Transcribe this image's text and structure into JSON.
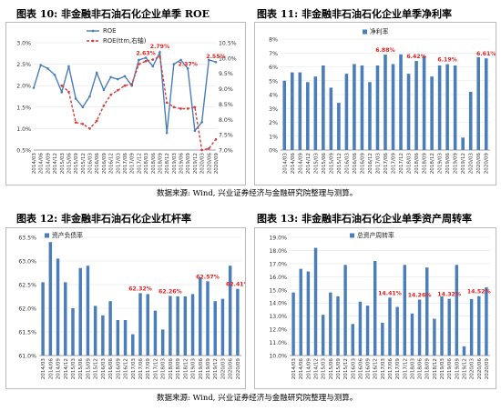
{
  "sections": [
    {
      "title": "图表  10:  非金融非石油石化企业单季 ROE"
    },
    {
      "title": "图表  11:  非金融非石油石化企业单季净利率"
    },
    {
      "title": "图表  12:  非金融非石油石化企业杠杆率"
    },
    {
      "title": "图表  13:  非金融非石油石化企业单季资产周转率"
    }
  ],
  "source_top": "数据来源:  Wind,  兴业证券经济与金融研究院整理与测算。",
  "source_bottom": "数据来源:  Wind,  兴业证券经济与金融研究院整理与测算。",
  "chart_data": [
    {
      "type": "line",
      "title": "",
      "x": [
        "2014/03",
        "2014/06",
        "2014/09",
        "2014/12",
        "2015/03",
        "2015/06",
        "2015/09",
        "2015/12",
        "2016/03",
        "2016/06",
        "2016/09",
        "2016/12",
        "2017/03",
        "2017/06",
        "2017/09",
        "2017/12",
        "2018/03",
        "2018/06",
        "2018/09",
        "2018/12",
        "2019/03",
        "2019/06",
        "2019/09",
        "2019/12",
        "2020/03",
        "2020/06",
        "2020/09"
      ],
      "xticks": [
        "2014/03",
        "2014/06",
        "2014/09",
        "2014/12",
        "2015/03",
        "2015/06",
        "2015/09",
        "2015/12",
        "2016/03",
        "2016/06",
        "2016/09",
        "2016/12",
        "2017/03",
        "2017/06",
        "2017/09",
        "2017/12",
        "2018/03",
        "2018/06",
        "2018/09",
        "2018/12",
        "2019/03",
        "2019/06",
        "2019/09",
        "2019/12",
        "2020/03",
        "2020/06",
        "2020/09"
      ],
      "ylim_left": [
        0.5,
        3.0
      ],
      "yticks_left": [
        "0.5%",
        "1.0%",
        "1.5%",
        "2.0%",
        "2.5%",
        "3.0%"
      ],
      "ylim_right": [
        7.0,
        10.5
      ],
      "yticks_right": [
        "7.0%",
        "7.5%",
        "8.0%",
        "8.5%",
        "9.0%",
        "9.5%",
        "10.0%",
        "10.5%"
      ],
      "series": [
        {
          "name": "ROE",
          "axis": "left",
          "color": "#4a7ebb",
          "style": "solid",
          "values": [
            1.95,
            2.48,
            2.4,
            2.25,
            1.85,
            2.45,
            1.7,
            1.5,
            1.75,
            2.3,
            1.9,
            2.2,
            2.15,
            2.22,
            2.0,
            2.6,
            2.65,
            2.45,
            2.78,
            0.9,
            2.5,
            2.6,
            2.4,
            0.95,
            1.15,
            2.6,
            2.55
          ]
        },
        {
          "name": "ROE(ttm,右轴)",
          "axis": "right",
          "color": "#d43c3c",
          "style": "dashed",
          "values": [
            null,
            null,
            null,
            null,
            9.1,
            8.9,
            7.9,
            7.85,
            7.7,
            7.95,
            8.45,
            8.8,
            8.95,
            9.1,
            9.15,
            9.8,
            9.9,
            9.95,
            10.05,
            8.55,
            8.4,
            8.35,
            8.35,
            8.4,
            7.0,
            7.05,
            7.35
          ]
        }
      ],
      "annotations": [
        {
          "text": "2.63%",
          "index": 16,
          "value": 2.63
        },
        {
          "text": "2.79%",
          "index": 18,
          "value": 2.79
        },
        {
          "text": "2.37%",
          "index": 22,
          "value": 2.37
        },
        {
          "text": "2.55%",
          "index": 26,
          "value": 2.55
        }
      ]
    },
    {
      "type": "bar",
      "title": "",
      "categories": [
        "2014/03",
        "2014/06",
        "2014/09",
        "2014/12",
        "2015/03",
        "2015/06",
        "2015/09",
        "2015/12",
        "2016/03",
        "2016/06",
        "2016/09",
        "2016/12",
        "2017/03",
        "2017/06",
        "2017/09",
        "2017/12",
        "2018/03",
        "2018/06",
        "2018/09",
        "2018/12",
        "2019/03",
        "2019/06",
        "2019/09",
        "2019/12",
        "2020/03",
        "2020/06",
        "2020/09"
      ],
      "xticks": [
        "2014/03",
        "2014/06",
        "2014/09",
        "2014/12",
        "2015/03",
        "2015/06",
        "2015/09",
        "2015/12",
        "2016/03",
        "2016/06",
        "2016/09",
        "2016/12",
        "2017/03",
        "2017/06",
        "2017/09",
        "2017/12",
        "2018/03",
        "2018/06",
        "2018/09",
        "2018/12",
        "2019/03",
        "2019/06",
        "2019/09",
        "2019/12",
        "2020/03",
        "2020/06",
        "2020/09"
      ],
      "ylim": [
        0,
        8
      ],
      "yticks": [
        "0%",
        "1%",
        "2%",
        "3%",
        "4%",
        "5%",
        "6%",
        "7%",
        "8%"
      ],
      "series": [
        {
          "name": "净利率",
          "color": "#4a7ebb",
          "values": [
            5.0,
            5.6,
            5.6,
            4.9,
            5.3,
            6.1,
            4.5,
            3.4,
            5.5,
            6.2,
            6.1,
            4.9,
            6.1,
            6.88,
            6.2,
            6.9,
            5.5,
            6.42,
            6.8,
            5.3,
            6.1,
            6.19,
            6.1,
            0.9,
            4.2,
            6.7,
            6.61
          ]
        }
      ],
      "annotations": [
        {
          "text": "6.88%",
          "index": 13,
          "value": 6.88
        },
        {
          "text": "6.42%",
          "index": 17,
          "value": 6.42
        },
        {
          "text": "6.19%",
          "index": 21,
          "value": 6.19
        },
        {
          "text": "6.61%",
          "index": 26,
          "value": 6.61
        }
      ]
    },
    {
      "type": "bar",
      "title": "",
      "categories": [
        "2014/03",
        "2014/06",
        "2014/09",
        "2014/12",
        "2015/03",
        "2015/06",
        "2015/09",
        "2015/12",
        "2016/03",
        "2016/06",
        "2016/09",
        "2016/12",
        "2017/03",
        "2017/06",
        "2017/09",
        "2017/12",
        "2018/03",
        "2018/06",
        "2018/09",
        "2018/12",
        "2019/03",
        "2019/06",
        "2019/09",
        "2019/12",
        "2020/03",
        "2020/06",
        "2020/09"
      ],
      "xticks": [
        "2014/03",
        "2014/06",
        "2014/09",
        "2014/12",
        "2015/03",
        "2015/06",
        "2015/09",
        "2015/12",
        "2016/03",
        "2016/06",
        "2016/09",
        "2016/12",
        "2017/03",
        "2017/06",
        "2017/09",
        "2017/12",
        "2018/03",
        "2018/06",
        "2018/09",
        "2018/12",
        "2019/03",
        "2019/06",
        "2019/09",
        "2019/12",
        "2020/03",
        "2020/06",
        "2020/09"
      ],
      "ylim": [
        61.0,
        63.5
      ],
      "yticks": [
        "61.0%",
        "61.5%",
        "62.0%",
        "62.5%",
        "63.0%",
        "63.5%"
      ],
      "series": [
        {
          "name": "资产负债率",
          "color": "#4a7ebb",
          "values": [
            62.55,
            63.4,
            63.05,
            62.55,
            62.0,
            62.85,
            62.9,
            62.05,
            61.85,
            62.15,
            61.75,
            61.75,
            61.45,
            62.32,
            62.3,
            61.95,
            61.55,
            62.26,
            62.25,
            62.25,
            62.3,
            62.65,
            62.57,
            62.15,
            62.2,
            62.9,
            62.41
          ]
        }
      ],
      "annotations": [
        {
          "text": "62.32%",
          "index": 13,
          "value": 62.32
        },
        {
          "text": "62.26%",
          "index": 17,
          "value": 62.26
        },
        {
          "text": "62.57%",
          "index": 22,
          "value": 62.57
        },
        {
          "text": "62.41%",
          "index": 26,
          "value": 62.41
        }
      ]
    },
    {
      "type": "bar",
      "title": "",
      "categories": [
        "2014/03",
        "2014/06",
        "2014/09",
        "2014/12",
        "2015/03",
        "2015/06",
        "2015/09",
        "2015/12",
        "2016/03",
        "2016/06",
        "2016/09",
        "2016/12",
        "2017/03",
        "2017/06",
        "2017/09",
        "2017/12",
        "2018/03",
        "2018/06",
        "2018/09",
        "2018/12",
        "2019/03",
        "2019/06",
        "2019/09",
        "2019/12",
        "2020/03",
        "2020/06",
        "2020/09"
      ],
      "xticks": [
        "2014/03",
        "2014/06",
        "2014/09",
        "2014/12",
        "2015/03",
        "2015/06",
        "2015/09",
        "2015/12",
        "2016/03",
        "2016/06",
        "2016/09",
        "2016/12",
        "2017/03",
        "2017/06",
        "2017/09",
        "2017/12",
        "2018/03",
        "2018/06",
        "2018/09",
        "2018/12",
        "2019/03",
        "2019/06",
        "2019/09",
        "2019/12",
        "2020/03",
        "2020/06",
        "2020/09"
      ],
      "ylim": [
        10.0,
        19.0
      ],
      "yticks": [
        "10.0%",
        "11.0%",
        "12.0%",
        "13.0%",
        "14.0%",
        "15.0%",
        "16.0%",
        "17.0%",
        "18.0%",
        "19.0%"
      ],
      "series": [
        {
          "name": "总资产周转率",
          "color": "#4a7ebb",
          "values": [
            14.8,
            16.6,
            16.4,
            18.2,
            13.1,
            14.8,
            14.5,
            16.9,
            12.4,
            14.1,
            13.8,
            17.2,
            12.5,
            14.41,
            13.7,
            16.9,
            13.2,
            14.26,
            16.7,
            12.8,
            14.5,
            14.32,
            16.9,
            10.7,
            14.3,
            14.52,
            15.2
          ]
        }
      ],
      "annotations": [
        {
          "text": "14.41%",
          "index": 13,
          "value": 14.41
        },
        {
          "text": "14.26%",
          "index": 17,
          "value": 14.26
        },
        {
          "text": "14.32%",
          "index": 21,
          "value": 14.32
        },
        {
          "text": "14.52%",
          "index": 25,
          "value": 14.52
        }
      ]
    }
  ]
}
